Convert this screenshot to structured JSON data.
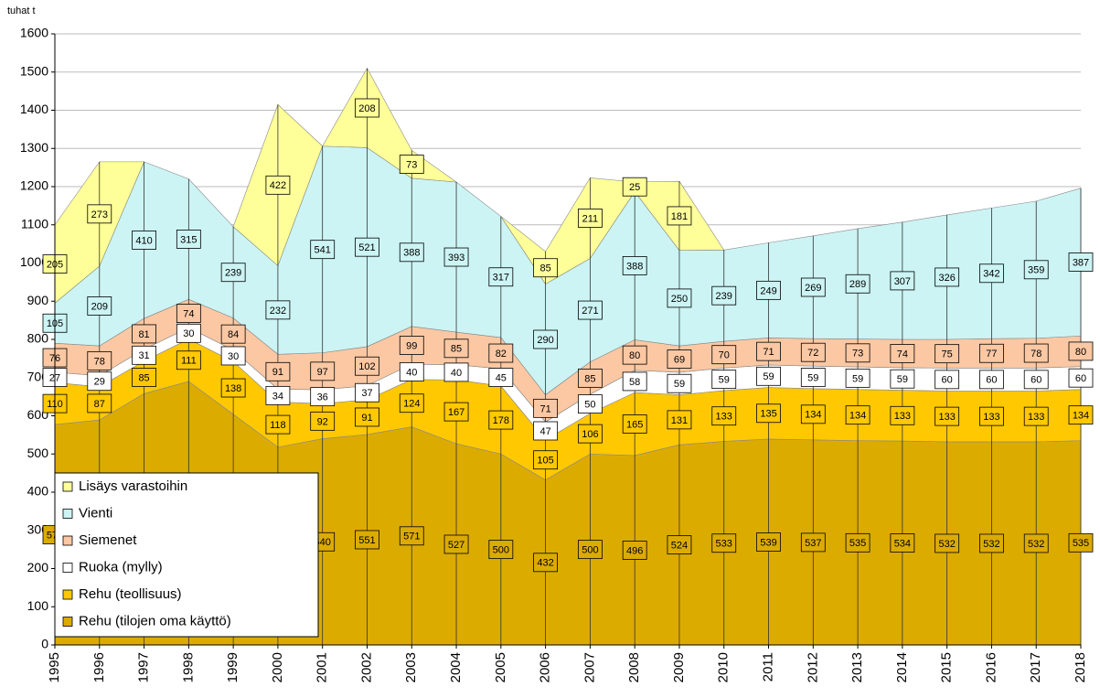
{
  "chart_data": {
    "type": "stacked_area",
    "y_axis_label": "tuhat t",
    "categories": [
      "1995",
      "1996",
      "1997",
      "1998",
      "1999",
      "2000",
      "2001",
      "2002",
      "2003",
      "2004",
      "2005",
      "2006",
      "2007",
      "2008",
      "2009",
      "2010",
      "2011",
      "2012",
      "2013",
      "2014",
      "2015",
      "2016",
      "2017",
      "2018"
    ],
    "series": [
      {
        "name": "Rehu (tilojen oma käyttö)",
        "color": "#dcab00",
        "values": [
          577,
          589,
          658,
          690,
          604,
          518,
          540,
          551,
          571,
          527,
          500,
          432,
          500,
          496,
          524,
          533,
          539,
          537,
          535,
          534,
          532,
          532,
          532,
          535
        ]
      },
      {
        "name": "Rehu (teollisuus)",
        "color": "#ffc800",
        "values": [
          110,
          87,
          85,
          111,
          138,
          118,
          92,
          91,
          124,
          167,
          178,
          105,
          106,
          165,
          131,
          133,
          135,
          134,
          134,
          133,
          133,
          133,
          133,
          134
        ]
      },
      {
        "name": "Ruoka (mylly)",
        "color": "#ffffff",
        "values": [
          27,
          29,
          31,
          30,
          30,
          34,
          36,
          37,
          40,
          40,
          45,
          47,
          50,
          58,
          59,
          59,
          59,
          59,
          59,
          59,
          60,
          60,
          60,
          60
        ]
      },
      {
        "name": "Siemenet",
        "color": "#fbc8a3",
        "values": [
          76,
          78,
          81,
          74,
          84,
          91,
          97,
          102,
          99,
          85,
          82,
          71,
          85,
          80,
          69,
          70,
          71,
          72,
          73,
          74,
          75,
          77,
          78,
          80
        ]
      },
      {
        "name": "Vienti",
        "color": "#ccf4f4",
        "values": [
          105,
          209,
          410,
          315,
          239,
          232,
          541,
          521,
          388,
          393,
          317,
          290,
          271,
          388,
          250,
          239,
          249,
          269,
          289,
          307,
          326,
          342,
          359,
          387
        ]
      },
      {
        "name": "Lisäys varastoihin",
        "color": "#ffff99",
        "values": [
          205,
          273,
          null,
          null,
          null,
          422,
          null,
          208,
          73,
          null,
          null,
          85,
          211,
          25,
          181,
          null,
          null,
          null,
          null,
          null,
          null,
          null,
          null,
          null
        ]
      }
    ],
    "ylim": [
      0,
      1600
    ],
    "yticks": [
      0,
      100,
      200,
      300,
      400,
      500,
      600,
      700,
      800,
      900,
      1000,
      1100,
      1200,
      1300,
      1400,
      1500,
      1600
    ],
    "grid": true,
    "legend": "bottom-left"
  }
}
